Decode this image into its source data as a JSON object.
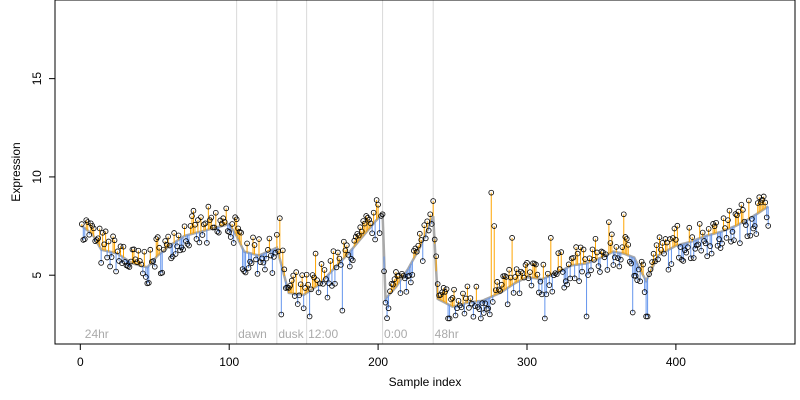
{
  "chart_data": {
    "type": "scatter",
    "title": "",
    "xlabel": "Sample index",
    "ylabel": "Expression",
    "xlim": [
      -17,
      480
    ],
    "ylim": [
      1.5,
      19
    ],
    "x_ticks": [
      0,
      100,
      200,
      300,
      400
    ],
    "y_ticks": [
      5,
      10,
      15
    ],
    "grid": false,
    "legend": "none",
    "colors": {
      "above_trend": "#FFA500",
      "below_trend": "#6495ED",
      "trend": "#A9A9A9",
      "divider": "#D9D9D9",
      "region_label": "#AAAAAA",
      "point_edge": "#000000"
    },
    "boundaries": [
      105,
      132,
      152,
      203,
      237
    ],
    "regions": [
      {
        "label": "24hr",
        "x": 3
      },
      {
        "label": "dawn",
        "x": 106
      },
      {
        "label": "dusk",
        "x": 133
      },
      {
        "label": "12:00",
        "x": 153
      },
      {
        "label": "0:00",
        "x": 204
      },
      {
        "label": "48hr",
        "x": 238
      }
    ],
    "anchors": [
      [
        1,
        7.5
      ],
      [
        8,
        7.1
      ],
      [
        14,
        6.3
      ],
      [
        25,
        6.1
      ],
      [
        35,
        5.6
      ],
      [
        45,
        5.4
      ],
      [
        52,
        6.0
      ],
      [
        60,
        6.5
      ],
      [
        70,
        7.0
      ],
      [
        80,
        7.2
      ],
      [
        90,
        7.4
      ],
      [
        100,
        7.6
      ],
      [
        105,
        7.0
      ],
      [
        110,
        6.2
      ],
      [
        120,
        6.0
      ],
      [
        132,
        6.4
      ],
      [
        140,
        4.1
      ],
      [
        150,
        4.0
      ],
      [
        160,
        4.5
      ],
      [
        170,
        5.3
      ],
      [
        180,
        6.1
      ],
      [
        190,
        7.0
      ],
      [
        200,
        7.9
      ],
      [
        203,
        8.1
      ],
      [
        205,
        3.8
      ],
      [
        212,
        4.4
      ],
      [
        220,
        5.3
      ],
      [
        228,
        6.4
      ],
      [
        237,
        8.0
      ],
      [
        240,
        3.8
      ],
      [
        250,
        3.4
      ],
      [
        260,
        3.6
      ],
      [
        270,
        3.7
      ],
      [
        282,
        4.1
      ],
      [
        292,
        4.6
      ],
      [
        300,
        4.9
      ],
      [
        310,
        4.8
      ],
      [
        320,
        5.1
      ],
      [
        330,
        5.5
      ],
      [
        340,
        5.6
      ],
      [
        350,
        5.9
      ],
      [
        358,
        6.2
      ],
      [
        365,
        6.1
      ],
      [
        372,
        5.9
      ],
      [
        380,
        4.7
      ],
      [
        388,
        6.0
      ],
      [
        400,
        6.5
      ],
      [
        410,
        6.7
      ],
      [
        420,
        7.0
      ],
      [
        430,
        7.2
      ],
      [
        440,
        7.5
      ],
      [
        450,
        7.9
      ],
      [
        462,
        8.5
      ]
    ],
    "spikes": [
      {
        "x": 134,
        "y": 7.9
      },
      {
        "x": 135,
        "y": 3.0
      },
      {
        "x": 154,
        "y": 2.9
      },
      {
        "x": 158,
        "y": 6.1
      },
      {
        "x": 176,
        "y": 3.2
      },
      {
        "x": 276,
        "y": 9.2
      },
      {
        "x": 278,
        "y": 7.5
      },
      {
        "x": 290,
        "y": 6.9
      },
      {
        "x": 312,
        "y": 2.8
      },
      {
        "x": 316,
        "y": 6.9
      },
      {
        "x": 340,
        "y": 2.9
      },
      {
        "x": 355,
        "y": 7.7
      },
      {
        "x": 365,
        "y": 8.1
      },
      {
        "x": 371,
        "y": 3.1
      },
      {
        "x": 380,
        "y": 2.9
      },
      {
        "x": 381,
        "y": 2.9
      },
      {
        "x": 1,
        "y": 7.6
      },
      {
        "x": 4,
        "y": 7.8
      },
      {
        "x": 98,
        "y": 8.4
      },
      {
        "x": 203,
        "y": 8.1
      },
      {
        "x": 235,
        "y": 8.1
      },
      {
        "x": 449,
        "y": 8.8
      },
      {
        "x": 460,
        "y": 8.7
      }
    ]
  }
}
